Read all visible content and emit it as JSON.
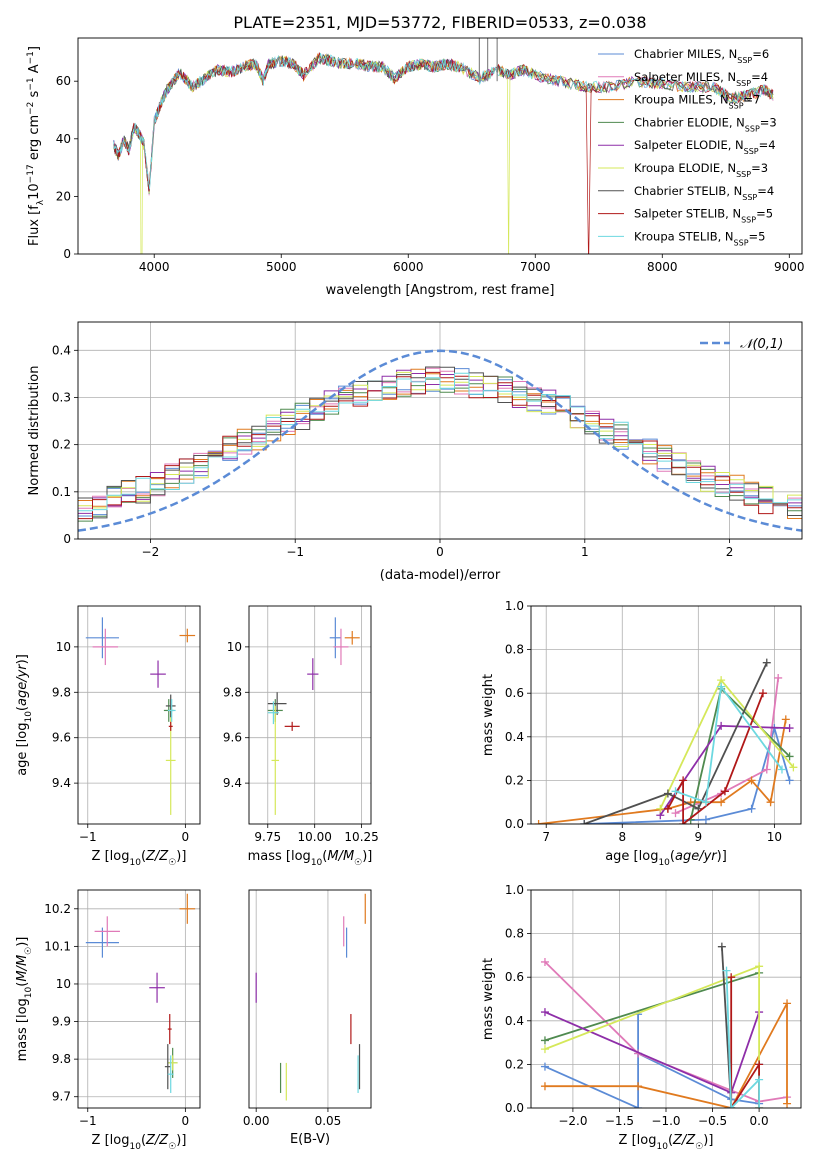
{
  "figure_title": "PLATE=2351, MJD=53772, FIBERID=0533, z=0.038",
  "legend_models": [
    {
      "label": "Chabrier MILES, N",
      "sub": "SSP",
      "n": "=6",
      "color": "#5b8bd6"
    },
    {
      "label": "Salpeter MILES, N",
      "sub": "SSP",
      "n": "=4",
      "color": "#e07ab8"
    },
    {
      "label": "Kroupa MILES, N",
      "sub": "SSP",
      "n": "=7",
      "color": "#e07a1f"
    },
    {
      "label": "Chabrier ELODIE, N",
      "sub": "SSP",
      "n": "=3",
      "color": "#4f8a4f"
    },
    {
      "label": "Salpeter ELODIE, N",
      "sub": "SSP",
      "n": "=4",
      "color": "#8e2ea8"
    },
    {
      "label": "Kroupa ELODIE, N",
      "sub": "SSP",
      "n": "=3",
      "color": "#d5e85a"
    },
    {
      "label": "Chabrier STELIB, N",
      "sub": "SSP",
      "n": "=4",
      "color": "#505050"
    },
    {
      "label": "Salpeter STELIB, N",
      "sub": "SSP",
      "n": "=5",
      "color": "#b01818"
    },
    {
      "label": "Kroupa STELIB, N",
      "sub": "SSP",
      "n": "=5",
      "color": "#6dd8e0"
    }
  ],
  "chart_data": [
    {
      "id": "spectrum",
      "type": "line",
      "xlabel": "wavelength [Angstrom, rest frame]",
      "ylabel": "Flux [f_λ 10^-17 erg cm^-2 s^-1 A^-1]",
      "xlim": [
        3400,
        9100
      ],
      "ylim": [
        0,
        75
      ],
      "xticks": [
        4000,
        5000,
        6000,
        7000,
        8000,
        9000
      ],
      "yticks": [
        0,
        20,
        40,
        60
      ],
      "x": [
        3680,
        3720,
        3760,
        3800,
        3840,
        3880,
        3920,
        3960,
        4000,
        4050,
        4100,
        4200,
        4300,
        4400,
        4500,
        4600,
        4700,
        4800,
        4860,
        4900,
        5000,
        5100,
        5175,
        5300,
        5400,
        5500,
        5600,
        5700,
        5800,
        5890,
        6000,
        6100,
        6200,
        6300,
        6400,
        6563,
        6700,
        6800,
        6900,
        7000,
        7200,
        7400,
        7600,
        7800,
        8000,
        8200,
        8400,
        8542,
        8662,
        8800,
        8880
      ],
      "y": [
        38,
        34,
        40,
        36,
        44,
        42,
        38,
        22,
        46,
        52,
        57,
        63,
        58,
        61,
        64,
        63,
        65,
        66,
        60,
        66,
        67,
        66,
        62,
        68,
        67,
        66,
        66,
        65,
        65,
        61,
        65,
        66,
        65,
        66,
        65,
        61,
        64,
        62,
        64,
        62,
        60,
        58,
        58,
        60,
        59,
        58,
        58,
        54,
        55,
        57,
        55
      ],
      "line_width": 0.6,
      "series_colors": [
        "#5b8bd6",
        "#e07ab8",
        "#e07a1f",
        "#4f8a4f",
        "#8e2ea8",
        "#d5e85a",
        "#505050",
        "#b01818",
        "#6dd8e0"
      ],
      "dropouts": [
        {
          "series": 5,
          "x": 3900
        },
        {
          "series": 5,
          "x": 6790
        },
        {
          "series": 7,
          "x": 7420
        }
      ],
      "legend": "top-right",
      "grid": false
    },
    {
      "id": "residuals",
      "type": "histogram",
      "xlabel": "(data-model)/error",
      "ylabel": "Normed distribution",
      "xlim": [
        -2.5,
        2.5
      ],
      "ylim": [
        0,
        0.46
      ],
      "xticks": [
        -2,
        -1,
        0,
        1,
        2
      ],
      "yticks": [
        0.0,
        0.1,
        0.2,
        0.3,
        0.4
      ],
      "bin_width": 0.1,
      "series_colors": [
        "#5b8bd6",
        "#e07ab8",
        "#e07a1f",
        "#4f8a4f",
        "#8e2ea8",
        "#d5e85a",
        "#505050",
        "#b01818",
        "#6dd8e0"
      ],
      "reference_curve": {
        "label": "𝒩(0,1)",
        "mu": 0,
        "sigma": 1,
        "color": "#5b8bd6",
        "style": "dashed"
      },
      "legend": "top-right",
      "grid": true
    },
    {
      "id": "age_vs_metallicity",
      "type": "errorbar",
      "xlabel": "Z [log10(Z/Z☉)]",
      "ylabel": "age [log10(age/yr)]",
      "xlim": [
        -1.1,
        0.15
      ],
      "ylim": [
        9.22,
        10.18
      ],
      "xticks": [
        -1,
        0
      ],
      "yticks": [
        9.4,
        9.6,
        9.8,
        10.0
      ],
      "points": [
        {
          "x": -0.85,
          "y": 10.04,
          "xerr": 0.17,
          "yerr": 0.09,
          "color": "#5b8bd6"
        },
        {
          "x": -0.82,
          "y": 10.0,
          "xerr": 0.13,
          "yerr": 0.08,
          "color": "#e07ab8"
        },
        {
          "x": 0.02,
          "y": 10.05,
          "xerr": 0.08,
          "yerr": 0.03,
          "color": "#e07a1f"
        },
        {
          "x": -0.17,
          "y": 9.72,
          "xerr": 0.05,
          "yerr": 0.05,
          "color": "#4f8a4f"
        },
        {
          "x": -0.28,
          "y": 9.88,
          "xerr": 0.08,
          "yerr": 0.06,
          "color": "#8e2ea8"
        },
        {
          "x": -0.15,
          "y": 9.5,
          "xerr": 0.05,
          "yerr": 0.24,
          "color": "#d5e85a"
        },
        {
          "x": -0.15,
          "y": 9.74,
          "xerr": 0.05,
          "yerr": 0.05,
          "color": "#505050"
        },
        {
          "x": -0.15,
          "y": 9.65,
          "xerr": 0.02,
          "yerr": 0.02,
          "color": "#b01818"
        },
        {
          "x": -0.14,
          "y": 9.72,
          "xerr": 0.04,
          "yerr": 0.05,
          "color": "#6dd8e0"
        }
      ],
      "grid": true
    },
    {
      "id": "age_vs_mass",
      "type": "errorbar",
      "xlabel": "mass [log10(M/M☉)]",
      "ylabel": "",
      "xlim": [
        9.65,
        10.3
      ],
      "ylim": [
        9.22,
        10.18
      ],
      "xticks": [
        9.75,
        10.0,
        10.25
      ],
      "yticks": [
        9.4,
        9.6,
        9.8,
        10.0
      ],
      "points": [
        {
          "x": 10.11,
          "y": 10.04,
          "xerr": 0.03,
          "yerr": 0.09,
          "color": "#5b8bd6"
        },
        {
          "x": 10.14,
          "y": 10.0,
          "xerr": 0.04,
          "yerr": 0.08,
          "color": "#e07ab8"
        },
        {
          "x": 10.2,
          "y": 10.04,
          "xerr": 0.04,
          "yerr": 0.03,
          "color": "#e07a1f"
        },
        {
          "x": 9.79,
          "y": 9.72,
          "xerr": 0.04,
          "yerr": 0.05,
          "color": "#4f8a4f"
        },
        {
          "x": 9.99,
          "y": 9.88,
          "xerr": 0.03,
          "yerr": 0.07,
          "color": "#8e2ea8"
        },
        {
          "x": 9.79,
          "y": 9.5,
          "xerr": 0.02,
          "yerr": 0.24,
          "color": "#d5e85a"
        },
        {
          "x": 9.8,
          "y": 9.75,
          "xerr": 0.05,
          "yerr": 0.05,
          "color": "#505050"
        },
        {
          "x": 9.88,
          "y": 9.65,
          "xerr": 0.04,
          "yerr": 0.02,
          "color": "#b01818"
        },
        {
          "x": 9.78,
          "y": 9.71,
          "xerr": 0.03,
          "yerr": 0.05,
          "color": "#6dd8e0"
        }
      ],
      "grid": true
    },
    {
      "id": "mass_weight_vs_age",
      "type": "line",
      "xlabel": "age [log10(age/yr)]",
      "ylabel": "mass weight",
      "xlim": [
        6.8,
        10.35
      ],
      "ylim": [
        0,
        1
      ],
      "xticks": [
        7,
        8,
        9,
        10
      ],
      "yticks": [
        0.0,
        0.2,
        0.4,
        0.6,
        0.8,
        1.0
      ],
      "series": [
        {
          "values": [
            [
              7.5,
              0.0
            ],
            [
              9.1,
              0.02
            ],
            [
              9.7,
              0.07
            ],
            [
              10.0,
              0.44
            ],
            [
              10.2,
              0.2
            ]
          ],
          "color": "#5b8bd6"
        },
        {
          "values": [
            [
              8.7,
              0.05
            ],
            [
              9.3,
              0.14
            ],
            [
              9.9,
              0.25
            ],
            [
              10.05,
              0.67
            ]
          ],
          "color": "#e07ab8"
        },
        {
          "values": [
            [
              6.9,
              0.0
            ],
            [
              8.6,
              0.07
            ],
            [
              8.9,
              0.1
            ],
            [
              9.3,
              0.1
            ],
            [
              9.7,
              0.2
            ],
            [
              9.95,
              0.1
            ],
            [
              10.15,
              0.48
            ]
          ],
          "color": "#e07a1f"
        },
        {
          "values": [
            [
              8.9,
              0.02
            ],
            [
              9.3,
              0.62
            ],
            [
              10.2,
              0.31
            ]
          ],
          "color": "#4f8a4f"
        },
        {
          "values": [
            [
              8.5,
              0.04
            ],
            [
              9.3,
              0.45
            ],
            [
              10.2,
              0.44
            ]
          ],
          "color": "#8e2ea8"
        },
        {
          "values": [
            [
              8.5,
              0.07
            ],
            [
              9.3,
              0.66
            ],
            [
              10.25,
              0.26
            ]
          ],
          "color": "#d5e85a"
        },
        {
          "values": [
            [
              7.5,
              0.0
            ],
            [
              8.6,
              0.14
            ],
            [
              9.0,
              0.07
            ],
            [
              9.9,
              0.74
            ]
          ],
          "color": "#505050"
        },
        {
          "values": [
            [
              8.6,
              0.07
            ],
            [
              8.8,
              0.2
            ],
            [
              8.8,
              0.0
            ],
            [
              9.35,
              0.15
            ],
            [
              9.85,
              0.6
            ]
          ],
          "color": "#b01818"
        },
        {
          "values": [
            [
              8.7,
              0.15
            ],
            [
              9.1,
              0.1
            ],
            [
              9.3,
              0.63
            ],
            [
              10.1,
              0.25
            ]
          ],
          "color": "#6dd8e0"
        }
      ],
      "markers": "plus",
      "grid": true
    },
    {
      "id": "mass_vs_metallicity",
      "type": "errorbar",
      "xlabel": "Z [log10(Z/Z☉)]",
      "ylabel": "mass [log10(M/M☉)]",
      "xlim": [
        -1.1,
        0.15
      ],
      "ylim": [
        9.67,
        10.25
      ],
      "xticks": [
        -1,
        0
      ],
      "yticks": [
        9.7,
        9.8,
        9.9,
        10.0,
        10.1,
        10.2
      ],
      "points": [
        {
          "x": -0.85,
          "y": 10.11,
          "xerr": 0.17,
          "yerr": 0.04,
          "color": "#5b8bd6"
        },
        {
          "x": -0.8,
          "y": 10.14,
          "xerr": 0.13,
          "yerr": 0.04,
          "color": "#e07ab8"
        },
        {
          "x": 0.02,
          "y": 10.2,
          "xerr": 0.08,
          "yerr": 0.04,
          "color": "#e07a1f"
        },
        {
          "x": -0.13,
          "y": 9.79,
          "xerr": 0.05,
          "yerr": 0.04,
          "color": "#4f8a4f"
        },
        {
          "x": -0.29,
          "y": 9.99,
          "xerr": 0.08,
          "yerr": 0.04,
          "color": "#8e2ea8"
        },
        {
          "x": -0.13,
          "y": 9.79,
          "xerr": 0.05,
          "yerr": 0.02,
          "color": "#d5e85a"
        },
        {
          "x": -0.18,
          "y": 9.78,
          "xerr": 0.03,
          "yerr": 0.06,
          "color": "#505050"
        },
        {
          "x": -0.16,
          "y": 9.88,
          "xerr": 0.02,
          "yerr": 0.04,
          "color": "#b01818"
        },
        {
          "x": -0.15,
          "y": 9.76,
          "xerr": 0.03,
          "yerr": 0.05,
          "color": "#6dd8e0"
        }
      ],
      "grid": true
    },
    {
      "id": "mass_vs_extinction",
      "type": "errorbar",
      "xlabel": "E(B-V)",
      "ylabel": "",
      "xlim": [
        -0.005,
        0.08
      ],
      "ylim": [
        9.67,
        10.25
      ],
      "xticks": [
        0.0,
        0.05
      ],
      "points": [
        {
          "x": 0.063,
          "y": 10.11,
          "xerr": 0.0,
          "yerr": 0.04,
          "color": "#5b8bd6"
        },
        {
          "x": 0.061,
          "y": 10.14,
          "xerr": 0.0,
          "yerr": 0.04,
          "color": "#e07ab8"
        },
        {
          "x": 0.076,
          "y": 10.2,
          "xerr": 0.0,
          "yerr": 0.04,
          "color": "#e07a1f"
        },
        {
          "x": 0.017,
          "y": 9.75,
          "xerr": 0.0,
          "yerr": 0.04,
          "color": "#4f8a4f"
        },
        {
          "x": 0.0,
          "y": 9.99,
          "xerr": 0.0,
          "yerr": 0.04,
          "color": "#8e2ea8"
        },
        {
          "x": 0.021,
          "y": 9.74,
          "xerr": 0.0,
          "yerr": 0.05,
          "color": "#d5e85a"
        },
        {
          "x": 0.072,
          "y": 9.78,
          "xerr": 0.0,
          "yerr": 0.06,
          "color": "#505050"
        },
        {
          "x": 0.066,
          "y": 9.88,
          "xerr": 0.0,
          "yerr": 0.04,
          "color": "#b01818"
        },
        {
          "x": 0.071,
          "y": 9.76,
          "xerr": 0.0,
          "yerr": 0.05,
          "color": "#6dd8e0"
        }
      ],
      "grid": true
    },
    {
      "id": "mass_weight_vs_metallicity",
      "type": "line",
      "xlabel": "Z [log10(Z/Z☉)]",
      "ylabel": "mass weight",
      "xlim": [
        -2.45,
        0.45
      ],
      "ylim": [
        0,
        1
      ],
      "xticks": [
        -2.0,
        -1.5,
        -1.0,
        -0.5,
        0.0
      ],
      "yticks": [
        0.0,
        0.2,
        0.4,
        0.6,
        0.8,
        1.0
      ],
      "series": [
        {
          "values": [
            [
              -2.3,
              0.19
            ],
            [
              -1.3,
              0.0
            ],
            [
              -1.3,
              0.43
            ],
            [
              -1.3,
              0.25
            ],
            [
              -0.3,
              0.04
            ],
            [
              0.0,
              0.02
            ],
            [
              0.0,
              0.2
            ]
          ],
          "color": "#5b8bd6"
        },
        {
          "values": [
            [
              -2.3,
              0.67
            ],
            [
              -1.3,
              0.25
            ],
            [
              0.0,
              0.03
            ],
            [
              0.3,
              0.05
            ]
          ],
          "color": "#e07ab8"
        },
        {
          "values": [
            [
              -2.3,
              0.1
            ],
            [
              -1.3,
              0.1
            ],
            [
              -0.3,
              0.0
            ],
            [
              0.3,
              0.48
            ],
            [
              0.3,
              0.02
            ]
          ],
          "color": "#e07a1f"
        },
        {
          "values": [
            [
              -2.3,
              0.31
            ],
            [
              0.0,
              0.62
            ]
          ],
          "color": "#4f8a4f"
        },
        {
          "values": [
            [
              -2.3,
              0.44
            ],
            [
              -0.3,
              0.07
            ],
            [
              0.0,
              0.44
            ]
          ],
          "color": "#8e2ea8"
        },
        {
          "values": [
            [
              -2.3,
              0.27
            ],
            [
              0.0,
              0.65
            ],
            [
              0.0,
              0.0
            ]
          ],
          "color": "#d5e85a"
        },
        {
          "values": [
            [
              -0.4,
              0.74
            ],
            [
              -0.3,
              0.0
            ]
          ],
          "color": "#505050"
        },
        {
          "values": [
            [
              -0.3,
              0.6
            ],
            [
              -0.3,
              0.0
            ],
            [
              0.0,
              0.2
            ],
            [
              0.0,
              0.0
            ]
          ],
          "color": "#b01818"
        },
        {
          "values": [
            [
              -0.35,
              0.63
            ],
            [
              -0.3,
              0.0
            ],
            [
              0.0,
              0.13
            ],
            [
              0.0,
              0.0
            ]
          ],
          "color": "#6dd8e0"
        }
      ],
      "markers": "plus",
      "grid": true
    }
  ]
}
